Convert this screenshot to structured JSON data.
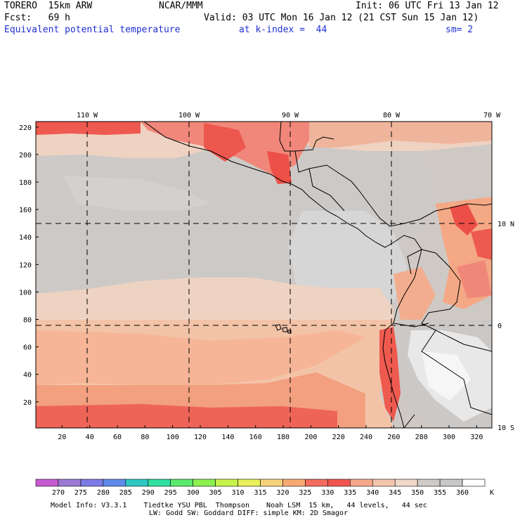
{
  "header": {
    "model": "TORERO  15km ARW",
    "org": "NCAR/MMM",
    "init": "Init: 06 UTC Fri 13 Jan 12",
    "fcst": "Fcst:   69 h",
    "valid": "Valid: 03 UTC Mon 16 Jan 12 (21 CST Sun 15 Jan 12)",
    "field": "Equivalent potential temperature",
    "level": "at k-index =  44",
    "smoothing": "sm= 2"
  },
  "map": {
    "lon_labels": [
      "110 W",
      "100 W",
      "90 W",
      "80 W",
      "70 W"
    ],
    "lat_labels": [
      "10 N",
      "0",
      "10 S"
    ],
    "y_grid_labels": [
      "220",
      "200",
      "180",
      "160",
      "140",
      "120",
      "100",
      "80",
      "60",
      "40",
      "20"
    ],
    "x_grid_labels": [
      "20",
      "40",
      "60",
      "80",
      "100",
      "120",
      "140",
      "160",
      "180",
      "200",
      "220",
      "240",
      "260",
      "280",
      "300",
      "320"
    ]
  },
  "colorbar": {
    "values": [
      "270",
      "275",
      "280",
      "285",
      "290",
      "295",
      "300",
      "305",
      "310",
      "315",
      "320",
      "325",
      "330",
      "335",
      "340",
      "345",
      "350",
      "355",
      "360"
    ],
    "unit": "K",
    "colors": [
      "#c65bd1",
      "#9c7ad6",
      "#7d7be6",
      "#5f8ae8",
      "#2ec7c2",
      "#2fe0a0",
      "#5be96e",
      "#8cf04f",
      "#c8f34c",
      "#e8f05a",
      "#f6d27a",
      "#f7a973",
      "#f36a5e",
      "#f0554f",
      "#f5a88a",
      "#f3c6ae",
      "#efd8c7",
      "#cfcbc8",
      "#c8c8c8",
      "#ffffff"
    ]
  },
  "footer": {
    "line1": "Model Info: V3.3.1    Tiedtke YSU PBL  Thompson    Noah LSM  15 km,   44 levels,   44 sec",
    "line2": "LW: Godd SW: Goddard DIFF: simple KM: 2D Smagor"
  }
}
